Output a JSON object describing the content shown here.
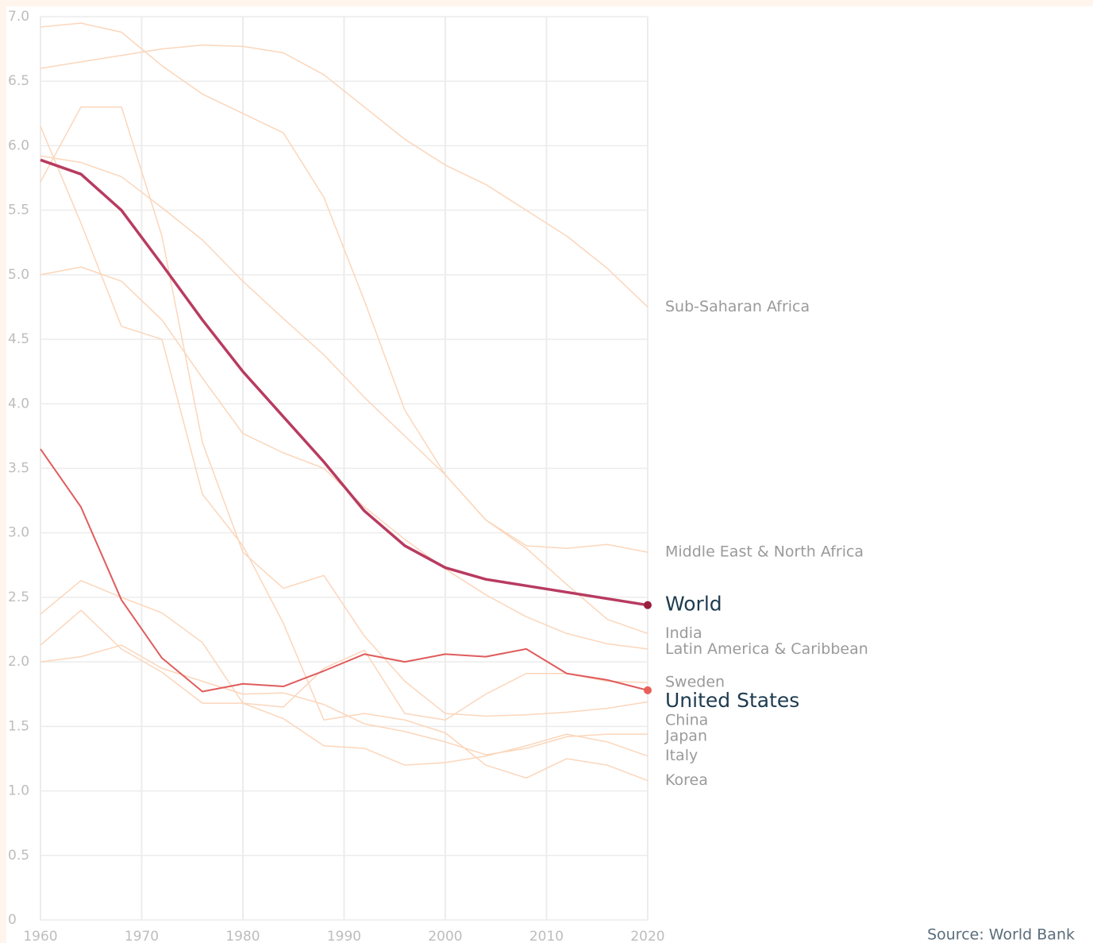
{
  "chart_data": {
    "type": "line",
    "source": "Source: World Bank",
    "x": [
      1960,
      1964,
      1968,
      1972,
      1976,
      1980,
      1984,
      1988,
      1992,
      1996,
      2000,
      2004,
      2008,
      2012,
      2016,
      2020
    ],
    "xlim": [
      1960,
      2020
    ],
    "xticks": [
      1960,
      1970,
      1980,
      1990,
      2000,
      2010,
      2020
    ],
    "ylim": [
      0,
      7
    ],
    "yticks": [
      0,
      {
        "value": 0.5,
        "label": "0.5"
      },
      {
        "value": 1,
        "label": "1.0"
      },
      {
        "value": 1.5,
        "label": "1.5"
      },
      {
        "value": 2,
        "label": "2.0"
      },
      {
        "value": 2.5,
        "label": "2.5"
      },
      {
        "value": 3,
        "label": "3.0"
      },
      {
        "value": 3.5,
        "label": "3.5"
      },
      {
        "value": 4,
        "label": "4.0"
      },
      {
        "value": 4.5,
        "label": "4.5"
      },
      {
        "value": 5,
        "label": "5.0"
      },
      {
        "value": 5.5,
        "label": "5.5"
      },
      {
        "value": 6,
        "label": "6.0"
      },
      {
        "value": 6.5,
        "label": "6.5"
      },
      {
        "value": 7,
        "label": "7.0"
      }
    ],
    "grid": true,
    "series": [
      {
        "name": "Sub-Saharan Africa",
        "color": "#fbd6bb",
        "label_color": "#9a9a9a",
        "values": [
          6.6,
          6.65,
          6.7,
          6.75,
          6.78,
          6.77,
          6.72,
          6.55,
          6.3,
          6.05,
          5.85,
          5.7,
          5.5,
          5.3,
          5.05,
          4.75
        ]
      },
      {
        "name": "Middle East & North Africa",
        "color": "#fbd6bb",
        "label_color": "#9a9a9a",
        "values": [
          6.92,
          6.95,
          6.88,
          6.62,
          6.4,
          6.25,
          6.1,
          5.6,
          4.8,
          3.95,
          3.45,
          3.1,
          2.9,
          2.88,
          2.91,
          2.85
        ]
      },
      {
        "name": "India",
        "color": "#fbd6bb",
        "label_color": "#9a9a9a",
        "values": [
          5.92,
          5.87,
          5.76,
          5.52,
          5.27,
          4.95,
          4.66,
          4.38,
          4.05,
          3.75,
          3.45,
          3.1,
          2.88,
          2.6,
          2.33,
          2.22
        ]
      },
      {
        "name": "Latin America & Caribbean",
        "color": "#fbd6bb",
        "label_color": "#9a9a9a",
        "values": [
          5.0,
          5.06,
          4.95,
          4.65,
          4.2,
          3.77,
          3.62,
          3.5,
          3.2,
          2.95,
          2.72,
          2.52,
          2.35,
          2.22,
          2.14,
          2.1
        ]
      },
      {
        "name": "Sweden",
        "color": "#fbd6bb",
        "label_color": "#9a9a9a",
        "values": [
          2.13,
          2.4,
          2.1,
          1.92,
          1.68,
          1.68,
          1.65,
          1.95,
          2.09,
          1.6,
          1.55,
          1.75,
          1.91,
          1.91,
          1.85,
          1.84
        ]
      },
      {
        "name": "China",
        "color": "#fbd6bb",
        "label_color": "#9a9a9a",
        "values": [
          5.72,
          6.3,
          6.3,
          5.3,
          3.7,
          2.85,
          2.57,
          2.67,
          2.2,
          1.85,
          1.6,
          1.58,
          1.59,
          1.61,
          1.64,
          1.69
        ]
      },
      {
        "name": "Japan",
        "color": "#fbd6bb",
        "label_color": "#9a9a9a",
        "values": [
          2.0,
          2.04,
          2.13,
          1.95,
          1.85,
          1.75,
          1.76,
          1.67,
          1.52,
          1.46,
          1.38,
          1.28,
          1.33,
          1.42,
          1.44,
          1.44
        ]
      },
      {
        "name": "Italy",
        "color": "#fbd6bb",
        "label_color": "#9a9a9a",
        "values": [
          2.37,
          2.63,
          2.5,
          2.38,
          2.15,
          1.68,
          1.56,
          1.35,
          1.33,
          1.2,
          1.22,
          1.27,
          1.35,
          1.44,
          1.38,
          1.27
        ]
      },
      {
        "name": "Korea",
        "color": "#fbd6bb",
        "label_color": "#9a9a9a",
        "values": [
          6.15,
          5.4,
          4.6,
          4.5,
          3.3,
          2.9,
          2.3,
          1.55,
          1.6,
          1.55,
          1.45,
          1.2,
          1.1,
          1.25,
          1.2,
          1.08
        ]
      },
      {
        "name": "United States",
        "color": "#e05c5c",
        "label_color": "#1d3b4f",
        "end_marker_color": "#e8605a",
        "values": [
          3.65,
          3.2,
          2.48,
          2.03,
          1.77,
          1.83,
          1.81,
          1.93,
          2.06,
          2.0,
          2.06,
          2.04,
          2.1,
          1.91,
          1.86,
          1.78
        ]
      },
      {
        "name": "World",
        "color": "#b83b60",
        "label_color": "#1d3b4f",
        "end_marker_color": "#9a1f3f",
        "values": [
          5.89,
          5.78,
          5.5,
          5.08,
          4.65,
          4.25,
          3.9,
          3.55,
          3.17,
          2.9,
          2.73,
          2.64,
          2.59,
          2.54,
          2.49,
          2.44
        ]
      }
    ]
  }
}
